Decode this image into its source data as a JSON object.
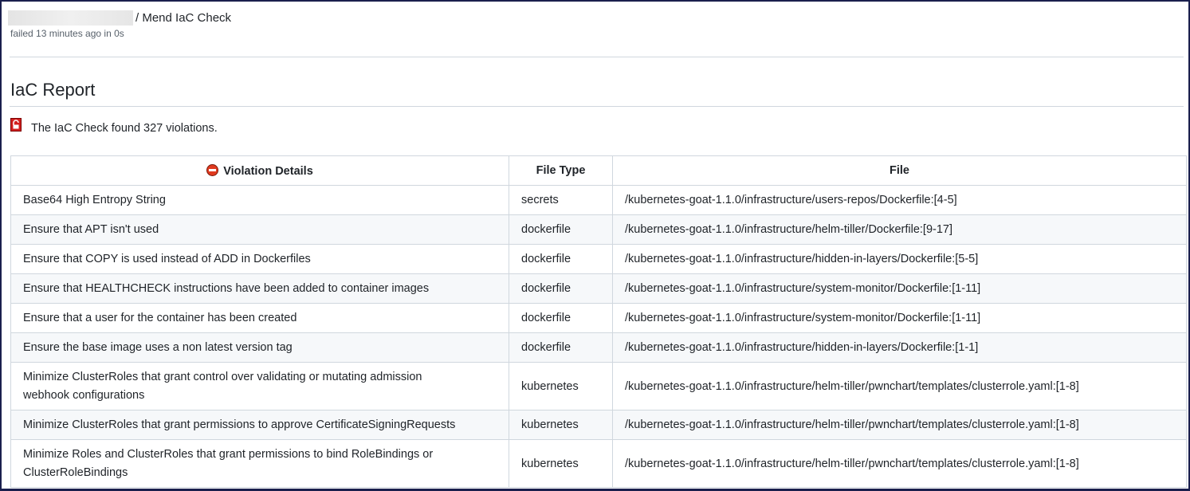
{
  "header": {
    "title": "/ Mend IaC Check",
    "status": "failed 13 minutes ago in 0s"
  },
  "report": {
    "heading": "IaC Report",
    "summary": "The IaC Check found 327 violations.",
    "icon": "lock-open-icon"
  },
  "table": {
    "headers": [
      "Violation Details",
      "File Type",
      "File"
    ],
    "rows": [
      {
        "violation": "Base64 High Entropy String",
        "type": "secrets",
        "file": "/kubernetes-goat-1.1.0/infrastructure/users-repos/Dockerfile:[4-5]"
      },
      {
        "violation": "Ensure that APT isn't used",
        "type": "dockerfile",
        "file": "/kubernetes-goat-1.1.0/infrastructure/helm-tiller/Dockerfile:[9-17]"
      },
      {
        "violation": "Ensure that COPY is used instead of ADD in Dockerfiles",
        "type": "dockerfile",
        "file": "/kubernetes-goat-1.1.0/infrastructure/hidden-in-layers/Dockerfile:[5-5]"
      },
      {
        "violation": "Ensure that HEALTHCHECK instructions have been added to container images",
        "type": "dockerfile",
        "file": "/kubernetes-goat-1.1.0/infrastructure/system-monitor/Dockerfile:[1-11]"
      },
      {
        "violation": "Ensure that a user for the container has been created",
        "type": "dockerfile",
        "file": "/kubernetes-goat-1.1.0/infrastructure/system-monitor/Dockerfile:[1-11]"
      },
      {
        "violation": "Ensure the base image uses a non latest version tag",
        "type": "dockerfile",
        "file": "/kubernetes-goat-1.1.0/infrastructure/hidden-in-layers/Dockerfile:[1-1]"
      },
      {
        "violation": "Minimize ClusterRoles that grant control over validating or mutating admission webhook configurations",
        "type": "kubernetes",
        "file": "/kubernetes-goat-1.1.0/infrastructure/helm-tiller/pwnchart/templates/clusterrole.yaml:[1-8]"
      },
      {
        "violation": "Minimize ClusterRoles that grant permissions to approve CertificateSigningRequests",
        "type": "kubernetes",
        "file": "/kubernetes-goat-1.1.0/infrastructure/helm-tiller/pwnchart/templates/clusterrole.yaml:[1-8]"
      },
      {
        "violation": "Minimize Roles and ClusterRoles that grant permissions to bind RoleBindings or ClusterRoleBindings",
        "type": "kubernetes",
        "file": "/kubernetes-goat-1.1.0/infrastructure/helm-tiller/pwnchart/templates/clusterrole.yaml:[1-8]"
      }
    ]
  },
  "colors": {
    "border": "#1a1f4d",
    "error": "#e03a1f",
    "stripe": "#f6f8fa"
  }
}
